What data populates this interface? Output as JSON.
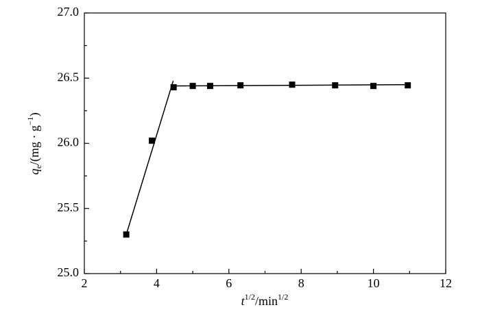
{
  "chart_data": {
    "type": "scatter",
    "xlabel": [
      {
        "text": "t",
        "style": "italic"
      },
      {
        "text": "1/2",
        "style": "sup"
      },
      {
        "text": "/min"
      },
      {
        "text": "1/2",
        "style": "sup"
      }
    ],
    "ylabel": [
      {
        "text": "q",
        "style": "italic"
      },
      {
        "text": "e",
        "style": "sub"
      },
      {
        "text": "/(mg · g"
      },
      {
        "text": "−1",
        "style": "sup"
      },
      {
        "text": ")"
      }
    ],
    "xlim": [
      2,
      12
    ],
    "ylim": [
      25.0,
      27.0
    ],
    "xticks": [
      2,
      4,
      6,
      8,
      10,
      12
    ],
    "xminor": [
      3,
      5,
      7,
      9,
      11
    ],
    "yticks": [
      {
        "value": 25.0,
        "label": "25.0"
      },
      {
        "value": 25.5,
        "label": "25.5"
      },
      {
        "value": 26.0,
        "label": "26.0"
      },
      {
        "value": 26.5,
        "label": "26.5"
      },
      {
        "value": 27.0,
        "label": "27.0"
      }
    ],
    "yminor": [
      25.25,
      25.75,
      26.25,
      26.75
    ],
    "series": [
      {
        "style": "marker",
        "color": "#000000",
        "x": [
          3.16,
          3.87,
          4.47,
          5.0,
          5.48,
          6.32,
          7.75,
          8.94,
          10.0,
          10.95
        ],
        "values": [
          25.3,
          26.02,
          26.43,
          26.44,
          26.44,
          26.445,
          26.45,
          26.445,
          26.44,
          26.445
        ]
      },
      {
        "style": "line",
        "color": "#000000",
        "x": [
          3.16,
          4.46
        ],
        "values": [
          25.3,
          26.48
        ]
      },
      {
        "style": "line",
        "color": "#000000",
        "x": [
          4.47,
          10.95
        ],
        "values": [
          26.44,
          26.45
        ]
      }
    ]
  }
}
